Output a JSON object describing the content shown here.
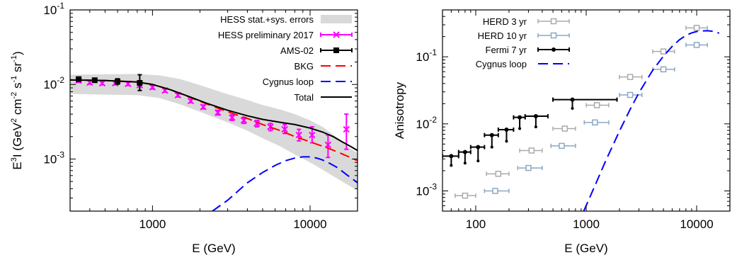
{
  "chart_data": [
    {
      "type": "line",
      "xlabel": "E (GeV)",
      "ylabel_parts": [
        "E",
        "3",
        "I (GeV",
        "2",
        " cm",
        "-2",
        " s",
        "-1",
        " sr",
        "-1",
        ")"
      ],
      "x_scale": "log",
      "y_scale": "log",
      "xlim": [
        300,
        20000
      ],
      "ylim": [
        0.0002,
        0.1
      ],
      "x_ticks": [
        {
          "v": 1000,
          "label": "1000"
        },
        {
          "v": 10000,
          "label": "10000"
        }
      ],
      "y_ticks": [
        {
          "v": 0.1,
          "base": "10",
          "exp": "-1"
        },
        {
          "v": 0.01,
          "base": "10",
          "exp": "-2"
        },
        {
          "v": 0.001,
          "base": "10",
          "exp": "-3"
        }
      ],
      "legend_position": "top-right",
      "series": [
        {
          "name": "HESS stat.+sys. errors",
          "kind": "band",
          "color": "#d9d9d9",
          "x": [
            300,
            500,
            800,
            1100,
            1500,
            2000,
            3000,
            4000,
            5000,
            6500,
            8000,
            10000,
            12000,
            15000,
            17000,
            20000
          ],
          "upper": [
            0.0135,
            0.0137,
            0.0138,
            0.0133,
            0.0118,
            0.0098,
            0.0074,
            0.0062,
            0.0053,
            0.0046,
            0.004,
            0.0033,
            0.0027,
            0.0019,
            0.0015,
            0.0012
          ],
          "lower": [
            0.0075,
            0.0073,
            0.0072,
            0.0066,
            0.0054,
            0.0043,
            0.0031,
            0.0024,
            0.0019,
            0.00147,
            0.00115,
            0.0009,
            0.00072,
            0.00054,
            0.00046,
            0.00038
          ]
        },
        {
          "name": "HESS preliminary 2017",
          "kind": "points",
          "color": "#ff00ff",
          "marker": "x",
          "x": [
            340,
            400,
            480,
            580,
            700,
            830,
            1000,
            1200,
            1450,
            1750,
            2100,
            2600,
            3200,
            3800,
            4600,
            5600,
            6900,
            8500,
            10300,
            13000,
            17000
          ],
          "y": [
            0.0113,
            0.0106,
            0.0104,
            0.0104,
            0.0102,
            0.0098,
            0.0092,
            0.0083,
            0.0072,
            0.006,
            0.005,
            0.0042,
            0.0036,
            0.0033,
            0.003,
            0.0027,
            0.0025,
            0.0021,
            0.0021,
            0.00155,
            0.0025
          ],
          "y_low": [
            0.0107,
            0.0101,
            0.0099,
            0.0099,
            0.0097,
            0.0093,
            0.0087,
            0.0079,
            0.0068,
            0.0057,
            0.0047,
            0.0039,
            0.0033,
            0.003,
            0.0027,
            0.0024,
            0.0022,
            0.00175,
            0.00165,
            0.00105,
            0.00135
          ],
          "y_high": [
            0.0119,
            0.0111,
            0.0109,
            0.0109,
            0.0107,
            0.0103,
            0.0097,
            0.0087,
            0.0076,
            0.0063,
            0.0053,
            0.0045,
            0.0039,
            0.0036,
            0.0033,
            0.003,
            0.0029,
            0.0025,
            0.0027,
            0.0021,
            0.004
          ]
        },
        {
          "name": "AMS-02",
          "kind": "points",
          "color": "#000000",
          "marker": "square",
          "x": [
            340,
            430,
            600,
            830
          ],
          "y": [
            0.0118,
            0.0114,
            0.011,
            0.0105
          ],
          "y_low": [
            0.0112,
            0.0109,
            0.0101,
            0.0083
          ],
          "y_high": [
            0.0124,
            0.0119,
            0.0119,
            0.0135
          ]
        },
        {
          "name": "BKG",
          "kind": "line",
          "color": "#ff0000",
          "dash": "long",
          "x": [
            300,
            500,
            800,
            1000,
            1300,
            1700,
            2200,
            3000,
            4000,
            5000,
            6500,
            8000,
            10000,
            13000,
            16000,
            20000
          ],
          "y": [
            0.0115,
            0.0113,
            0.0108,
            0.01,
            0.0085,
            0.0068,
            0.0055,
            0.0043,
            0.0035,
            0.0029,
            0.0024,
            0.002,
            0.0017,
            0.0014,
            0.00117,
            0.00095
          ]
        },
        {
          "name": "Cygnus loop",
          "kind": "line",
          "color": "#0000ff",
          "dash": "long",
          "x": [
            2400,
            3000,
            4000,
            5000,
            6000,
            7000,
            8000,
            9000,
            10000,
            11000,
            12000,
            13000,
            15000,
            17000,
            20000
          ],
          "y": [
            0.0002,
            0.00028,
            0.00048,
            0.00066,
            0.00082,
            0.00095,
            0.00103,
            0.00107,
            0.00107,
            0.00103,
            0.00097,
            0.0009,
            0.00076,
            0.00062,
            0.00048
          ]
        },
        {
          "name": "Total",
          "kind": "line",
          "color": "#000000",
          "dash": "solid",
          "x": [
            300,
            500,
            800,
            1000,
            1300,
            1700,
            2200,
            3000,
            4000,
            5000,
            6500,
            8000,
            10000,
            12000,
            14000,
            16000,
            18000,
            20000
          ],
          "y": [
            0.0115,
            0.0113,
            0.0108,
            0.01,
            0.0085,
            0.0069,
            0.0056,
            0.0045,
            0.0038,
            0.0034,
            0.0031,
            0.0029,
            0.0026,
            0.0023,
            0.002,
            0.0017,
            0.00148,
            0.0013
          ]
        }
      ]
    },
    {
      "type": "scatter",
      "xlabel": "E (GeV)",
      "ylabel": "Anisotropy",
      "x_scale": "log",
      "y_scale": "log",
      "xlim": [
        50,
        20000
      ],
      "ylim": [
        0.0005,
        0.5
      ],
      "x_ticks": [
        {
          "v": 100,
          "label": "100"
        },
        {
          "v": 1000,
          "label": "1000"
        },
        {
          "v": 10000,
          "label": "10000"
        }
      ],
      "y_ticks": [
        {
          "v": 0.1,
          "base": "10",
          "exp": "-1"
        },
        {
          "v": 0.01,
          "base": "10",
          "exp": "-2"
        },
        {
          "v": 0.001,
          "base": "10",
          "exp": "-3"
        }
      ],
      "legend_position": "top-left",
      "series": [
        {
          "name": "HERD 3 yr",
          "kind": "points",
          "color": "#aaaaaa",
          "marker": "open-square",
          "x": [
            80,
            160,
            320,
            640,
            1250,
            2500,
            5000,
            10000
          ],
          "x_low": [
            65,
            125,
            250,
            500,
            1000,
            2000,
            4000,
            8000
          ],
          "x_high": [
            100,
            200,
            400,
            800,
            1600,
            3200,
            6300,
            12500
          ],
          "y": [
            0.00085,
            0.0018,
            0.004,
            0.0085,
            0.019,
            0.05,
            0.12,
            0.27
          ]
        },
        {
          "name": "HERD 10 yr",
          "kind": "points",
          "color": "#8ba7c2",
          "marker": "open-square",
          "x": [
            150,
            300,
            600,
            1200,
            2500,
            5000,
            10000
          ],
          "x_low": [
            120,
            240,
            480,
            960,
            2000,
            4000,
            8000
          ],
          "x_high": [
            200,
            400,
            800,
            1600,
            3200,
            6300,
            12500
          ],
          "y": [
            0.001,
            0.0022,
            0.0047,
            0.0105,
            0.027,
            0.065,
            0.15
          ]
        },
        {
          "name": "Fermi 7 yr",
          "kind": "points",
          "color": "#000000",
          "marker": "dot",
          "x": [
            60,
            80,
            105,
            140,
            190,
            250,
            350,
            750
          ],
          "x_low": [
            50,
            70,
            90,
            120,
            160,
            220,
            280,
            500
          ],
          "x_high": [
            70,
            90,
            120,
            160,
            220,
            280,
            450,
            1900
          ],
          "y": [
            0.0033,
            0.0038,
            0.0045,
            0.0068,
            0.0082,
            0.0125,
            0.013,
            0.023
          ],
          "y_low": [
            0.0024,
            0.0026,
            0.0028,
            0.0045,
            0.0055,
            0.0085,
            0.009,
            0.017
          ]
        },
        {
          "name": "Cygnus loop",
          "kind": "line",
          "color": "#0000ff",
          "dash": "long",
          "x": [
            950,
            1200,
            1500,
            2000,
            2500,
            3000,
            4000,
            5000,
            6000,
            7000,
            8000,
            9000,
            10000,
            11000,
            12500,
            14000,
            16000
          ],
          "y": [
            0.0005,
            0.0012,
            0.0028,
            0.0078,
            0.0165,
            0.029,
            0.063,
            0.102,
            0.143,
            0.18,
            0.208,
            0.227,
            0.238,
            0.243,
            0.245,
            0.24,
            0.225
          ]
        }
      ]
    }
  ]
}
